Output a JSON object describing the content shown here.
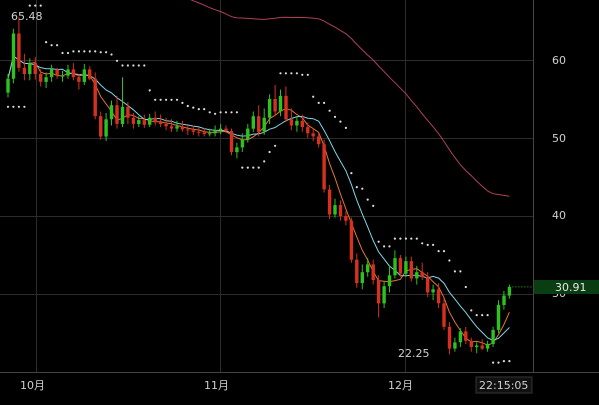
{
  "chart_data": {
    "type": "candlestick",
    "title": "",
    "xlabel": "",
    "ylabel": "",
    "ylim": [
      18,
      66
    ],
    "x_ticks": [
      "10月",
      "11月",
      "12月"
    ],
    "y_ticks": [
      60,
      50,
      40,
      30
    ],
    "price_axis": "right",
    "grid": true,
    "crosshair_time": "22:15:05",
    "price_badge": "30.91",
    "annotations": {
      "high_label": "65.48",
      "low_label": "22.25"
    },
    "colors": {
      "up": "#2ec21f",
      "down": "#d6311f",
      "ma_orange": "#e8742c",
      "ma_cyan": "#7fd6e8",
      "ma_purple": "#b0405a",
      "sar": "#dddddd",
      "grid": "#2c2c2c",
      "badge": "#0b3d12"
    },
    "candles": [
      [
        55.8,
        58.2,
        55.2,
        57.6
      ],
      [
        57.6,
        64.0,
        57.0,
        63.4
      ],
      [
        63.4,
        65.48,
        58.5,
        59.0
      ],
      [
        59.0,
        60.8,
        57.4,
        58.2
      ],
      [
        58.2,
        60.2,
        57.4,
        59.6
      ],
      [
        59.6,
        60.4,
        57.5,
        58.2
      ],
      [
        58.2,
        58.8,
        56.6,
        57.2
      ],
      [
        57.2,
        58.4,
        56.4,
        57.8
      ],
      [
        57.8,
        59.4,
        57.2,
        58.8
      ],
      [
        58.8,
        59.0,
        57.6,
        58.0
      ],
      [
        58.0,
        58.6,
        57.2,
        58.0
      ],
      [
        58.0,
        59.4,
        57.6,
        58.8
      ],
      [
        58.8,
        59.6,
        57.4,
        57.8
      ],
      [
        57.8,
        58.2,
        56.2,
        57.2
      ],
      [
        57.2,
        59.5,
        56.8,
        58.8
      ],
      [
        58.8,
        59.2,
        57.4,
        57.6
      ],
      [
        57.6,
        58.4,
        52.4,
        52.8
      ],
      [
        52.8,
        53.4,
        49.8,
        50.2
      ],
      [
        50.2,
        53.2,
        49.6,
        52.4
      ],
      [
        52.4,
        54.8,
        51.6,
        54.2
      ],
      [
        54.2,
        55.4,
        51.2,
        51.8
      ],
      [
        51.8,
        57.8,
        51.4,
        54.0
      ],
      [
        54.0,
        54.6,
        51.8,
        52.6
      ],
      [
        52.6,
        53.2,
        51.2,
        51.8
      ],
      [
        51.8,
        52.8,
        51.4,
        52.3
      ],
      [
        52.3,
        53.0,
        51.3,
        51.7
      ],
      [
        51.7,
        53.1,
        51.4,
        52.6
      ],
      [
        52.6,
        53.4,
        51.6,
        52.0
      ],
      [
        52.0,
        53.0,
        51.4,
        51.8
      ],
      [
        51.8,
        52.6,
        51.0,
        51.5
      ],
      [
        51.5,
        52.4,
        50.8,
        51.2
      ],
      [
        51.2,
        52.2,
        50.8,
        51.5
      ],
      [
        51.5,
        52.2,
        50.8,
        51.1
      ],
      [
        51.1,
        51.8,
        50.4,
        51.0
      ],
      [
        51.0,
        51.6,
        50.4,
        50.8
      ],
      [
        50.8,
        51.4,
        50.2,
        50.7
      ],
      [
        50.7,
        51.3,
        50.2,
        50.5
      ],
      [
        50.5,
        51.2,
        50.2,
        50.6
      ],
      [
        50.6,
        51.6,
        50.2,
        51.0
      ],
      [
        51.0,
        51.8,
        50.5,
        51.2
      ],
      [
        51.2,
        51.6,
        50.6,
        50.9
      ],
      [
        50.9,
        51.2,
        47.8,
        48.2
      ],
      [
        48.2,
        49.4,
        47.4,
        48.8
      ],
      [
        48.8,
        50.6,
        48.2,
        49.8
      ],
      [
        49.8,
        51.8,
        49.4,
        51.2
      ],
      [
        51.2,
        53.4,
        50.8,
        52.8
      ],
      [
        52.8,
        54.2,
        50.2,
        50.8
      ],
      [
        50.8,
        53.8,
        50.4,
        52.6
      ],
      [
        52.6,
        55.6,
        51.8,
        55.0
      ],
      [
        55.0,
        56.8,
        52.8,
        53.4
      ],
      [
        53.4,
        56.2,
        52.8,
        55.4
      ],
      [
        55.4,
        56.6,
        52.0,
        52.4
      ],
      [
        52.4,
        53.8,
        51.0,
        51.6
      ],
      [
        51.6,
        52.8,
        50.8,
        52.2
      ],
      [
        52.2,
        53.0,
        50.8,
        51.4
      ],
      [
        51.4,
        52.0,
        50.0,
        50.6
      ],
      [
        50.6,
        51.2,
        49.6,
        50.2
      ],
      [
        50.2,
        50.6,
        48.8,
        49.2
      ],
      [
        49.2,
        49.8,
        43.0,
        43.4
      ],
      [
        43.4,
        44.0,
        39.6,
        40.2
      ],
      [
        40.2,
        42.2,
        39.8,
        41.4
      ],
      [
        41.4,
        42.0,
        39.4,
        40.0
      ],
      [
        40.0,
        40.6,
        38.8,
        39.4
      ],
      [
        39.4,
        39.8,
        34.0,
        34.4
      ],
      [
        34.4,
        35.2,
        30.8,
        31.4
      ],
      [
        31.4,
        33.8,
        30.6,
        32.8
      ],
      [
        32.8,
        34.6,
        32.2,
        33.8
      ],
      [
        33.8,
        34.4,
        31.2,
        31.8
      ],
      [
        31.8,
        32.4,
        27.0,
        28.8
      ],
      [
        28.8,
        31.6,
        28.2,
        31.0
      ],
      [
        31.0,
        33.6,
        30.2,
        32.4
      ],
      [
        32.4,
        35.6,
        32.0,
        34.6
      ],
      [
        34.6,
        35.0,
        32.2,
        32.6
      ],
      [
        32.6,
        34.8,
        32.2,
        34.2
      ],
      [
        34.2,
        34.8,
        31.6,
        32.0
      ],
      [
        32.0,
        33.6,
        31.2,
        32.8
      ],
      [
        32.8,
        34.0,
        31.8,
        32.2
      ],
      [
        32.2,
        32.8,
        29.6,
        30.2
      ],
      [
        30.2,
        31.2,
        29.2,
        30.6
      ],
      [
        30.6,
        31.4,
        28.2,
        28.8
      ],
      [
        28.8,
        29.4,
        25.4,
        25.8
      ],
      [
        25.8,
        26.4,
        22.25,
        23.0
      ],
      [
        23.0,
        24.4,
        22.6,
        23.8
      ],
      [
        23.8,
        25.6,
        23.2,
        25.2
      ],
      [
        25.2,
        25.8,
        23.6,
        24.0
      ],
      [
        24.0,
        24.4,
        22.6,
        23.2
      ],
      [
        23.2,
        23.8,
        22.4,
        23.4
      ],
      [
        23.4,
        24.2,
        22.8,
        23.0
      ],
      [
        23.0,
        24.0,
        22.6,
        23.6
      ],
      [
        23.6,
        25.8,
        23.2,
        25.4
      ],
      [
        25.4,
        29.2,
        25.0,
        28.6
      ],
      [
        28.6,
        30.4,
        28.0,
        29.8
      ],
      [
        29.8,
        31.2,
        29.4,
        30.91
      ]
    ]
  }
}
